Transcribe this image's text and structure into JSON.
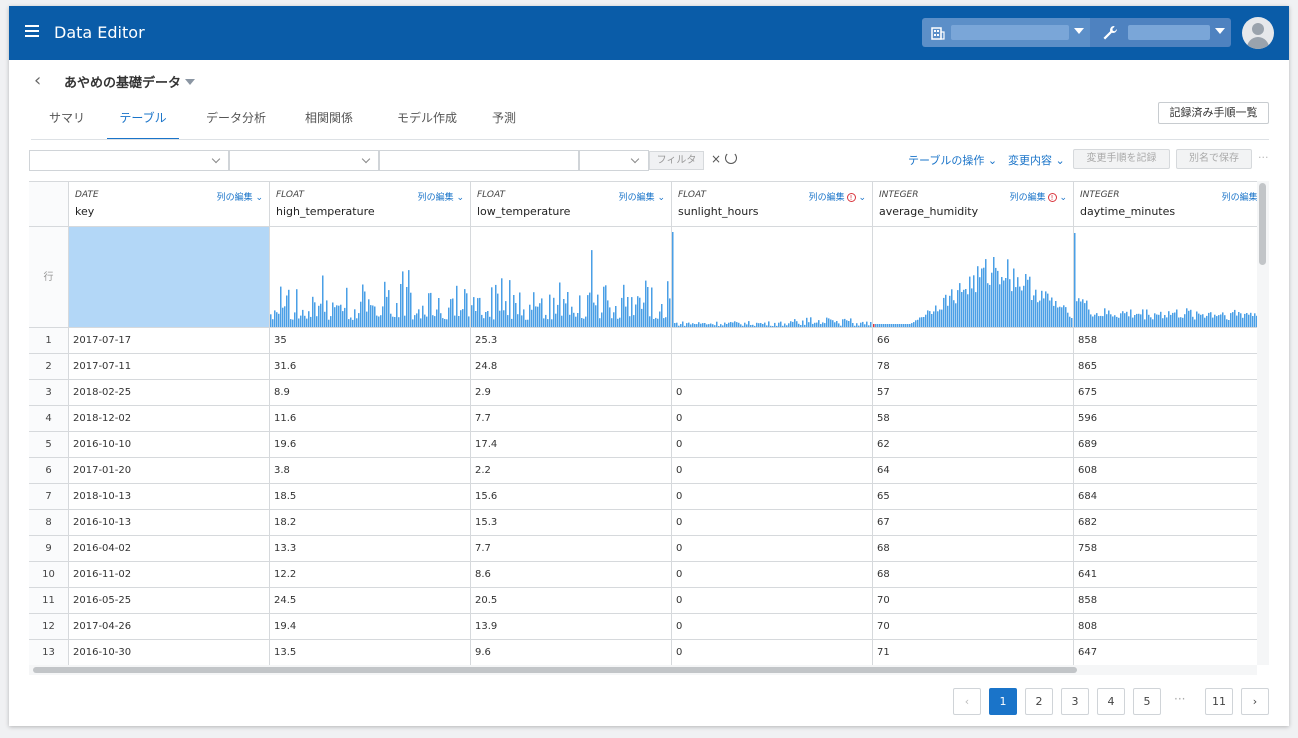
{
  "app": {
    "title": "Data Editor"
  },
  "dataset": {
    "title": "あやめの基礎データ"
  },
  "nav": {
    "back_icon": "chevron-left-icon"
  },
  "tabs": [
    {
      "label": "サマリ",
      "active": false
    },
    {
      "label": "テーブル",
      "active": true
    },
    {
      "label": "データ分析",
      "active": false
    },
    {
      "label": "相関関係",
      "active": false
    },
    {
      "label": "モデル作成",
      "active": false
    },
    {
      "label": "予測",
      "active": false
    }
  ],
  "record_button": "記録済み手順一覧",
  "filter_bar": {
    "filter_button": "フィルタ",
    "clear": "×"
  },
  "actions": {
    "table_ops": "テーブルの操作",
    "changes": "変更内容",
    "save_steps": "変更手順を記録",
    "save_as": "別名で保存",
    "more": "···"
  },
  "grid": {
    "row_header_label": "行",
    "columns": [
      {
        "type": "DATE",
        "name": "key",
        "edit": "列の編集",
        "warning": false
      },
      {
        "type": "FLOAT",
        "name": "high_temperature",
        "edit": "列の編集",
        "warning": false
      },
      {
        "type": "FLOAT",
        "name": "low_temperature",
        "edit": "列の編集",
        "warning": false
      },
      {
        "type": "FLOAT",
        "name": "sunlight_hours",
        "edit": "列の編集",
        "warning": true
      },
      {
        "type": "INTEGER",
        "name": "average_humidity",
        "edit": "列の編集",
        "warning": true
      },
      {
        "type": "INTEGER",
        "name": "daytime_minutes",
        "edit": "列の編集",
        "warning": false
      }
    ],
    "rows": [
      {
        "n": "1",
        "cells": [
          "2017-07-17",
          "35",
          "25.3",
          "",
          "66",
          "858"
        ]
      },
      {
        "n": "2",
        "cells": [
          "2017-07-11",
          "31.6",
          "24.8",
          "",
          "78",
          "865"
        ]
      },
      {
        "n": "3",
        "cells": [
          "2018-02-25",
          "8.9",
          "2.9",
          "0",
          "57",
          "675"
        ]
      },
      {
        "n": "4",
        "cells": [
          "2018-12-02",
          "11.6",
          "7.7",
          "0",
          "58",
          "596"
        ]
      },
      {
        "n": "5",
        "cells": [
          "2016-10-10",
          "19.6",
          "17.4",
          "0",
          "62",
          "689"
        ]
      },
      {
        "n": "6",
        "cells": [
          "2017-01-20",
          "3.8",
          "2.2",
          "0",
          "64",
          "608"
        ]
      },
      {
        "n": "7",
        "cells": [
          "2018-10-13",
          "18.5",
          "15.6",
          "0",
          "65",
          "684"
        ]
      },
      {
        "n": "8",
        "cells": [
          "2016-10-13",
          "18.2",
          "15.3",
          "0",
          "67",
          "682"
        ]
      },
      {
        "n": "9",
        "cells": [
          "2016-04-02",
          "13.3",
          "7.7",
          "0",
          "68",
          "758"
        ]
      },
      {
        "n": "10",
        "cells": [
          "2016-11-02",
          "12.2",
          "8.6",
          "0",
          "68",
          "641"
        ]
      },
      {
        "n": "11",
        "cells": [
          "2016-05-25",
          "24.5",
          "20.5",
          "0",
          "70",
          "858"
        ]
      },
      {
        "n": "12",
        "cells": [
          "2017-04-26",
          "19.4",
          "13.9",
          "0",
          "70",
          "808"
        ]
      },
      {
        "n": "13",
        "cells": [
          "2016-10-30",
          "13.5",
          "9.6",
          "0",
          "71",
          "647"
        ]
      }
    ]
  },
  "pagination": {
    "prev": "‹",
    "next": "›",
    "pages": [
      "1",
      "2",
      "3",
      "4",
      "5"
    ],
    "dots": "···",
    "last": "11",
    "current": "1"
  },
  "colors": {
    "header_bg": "#0a5ca8",
    "accent": "#1a74c9",
    "hist_bar": "#4a9fe6",
    "hist_selected": "#b3d7f7",
    "warning": "#d9363e"
  }
}
